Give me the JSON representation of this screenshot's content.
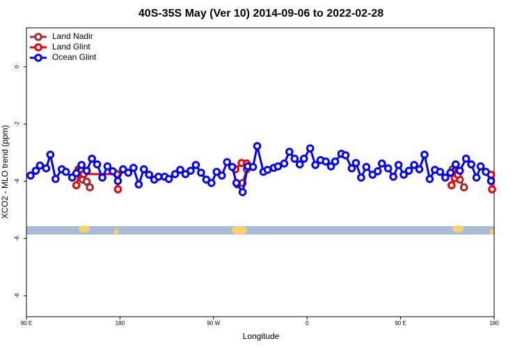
{
  "chart_data": {
    "type": "line",
    "title": "40S-35S May (Ver 10)   2014-09-06 to 2022-02-28",
    "xlabel": "Longitude",
    "ylabel": "XCO2 - MLO trend (ppm)",
    "xlim": [
      90,
      540
    ],
    "ylim": [
      -8.73,
      1.36
    ],
    "xticks": [
      {
        "value": 90,
        "label": "90 E"
      },
      180,
      {
        "value": 270,
        "label": "90 W"
      },
      {
        "value": 360,
        "label": "0"
      },
      {
        "value": 450,
        "label": "90 E"
      },
      {
        "value": 540,
        "label": "180"
      }
    ],
    "yticks": [
      0,
      -2,
      -4,
      -6,
      -8
    ],
    "grid": false,
    "legend": "top-left",
    "series": [
      {
        "name": "Land Nadir",
        "color": "#a52a2a",
        "x": [
          140,
          144,
          148,
          151,
          null,
          293,
          298,
          302,
          null,
          500,
          503,
          507,
          511
        ],
        "values": [
          -3.58,
          -3.94,
          -4.01,
          -4.21,
          null,
          -4.11,
          -4.06,
          -3.58,
          null,
          -3.58,
          -3.8,
          -3.94,
          -4.21
        ]
      },
      {
        "name": "Land Glint",
        "color": "#ee0000",
        "x": [
          138,
          142,
          145,
          177,
          178,
          null,
          291,
          297,
          302,
          null,
          499,
          502,
          505,
          null,
          537,
          538
        ],
        "values": [
          -4.14,
          -3.58,
          -3.75,
          -3.75,
          -4.28,
          null,
          -3.58,
          -3.36,
          -3.38,
          null,
          -4.14,
          -3.89,
          -3.77,
          null,
          -3.77,
          -4.28
        ]
      },
      {
        "name": "Ocean Glint",
        "color": "#0000ee",
        "x": [
          94,
          99,
          103,
          109,
          113,
          118,
          124,
          128,
          134,
          138,
          143,
          148,
          153,
          158,
          163,
          168,
          173,
          178,
          183,
          188,
          193,
          198,
          203,
          208,
          213,
          217,
          223,
          227,
          233,
          238,
          243,
          248,
          253,
          258,
          263,
          268,
          273,
          278,
          283,
          288,
          292,
          298,
          303,
          308,
          312,
          318,
          322,
          328,
          332,
          338,
          343,
          348,
          353,
          357,
          363,
          368,
          373,
          378,
          383,
          387,
          393,
          397,
          403,
          407,
          412,
          417,
          423,
          428,
          432,
          438,
          443,
          448,
          453,
          458,
          463,
          468,
          473,
          478,
          483,
          488,
          493,
          498,
          503,
          507,
          513,
          518,
          523,
          527,
          532,
          537
        ],
        "values": [
          -3.8,
          -3.63,
          -3.45,
          -3.55,
          -3.07,
          -3.92,
          -3.58,
          -3.67,
          -3.87,
          -3.72,
          -3.43,
          -3.63,
          -3.21,
          -3.41,
          -3.87,
          -3.48,
          -3.65,
          -3.99,
          -3.58,
          -3.7,
          -3.53,
          -4.11,
          -3.58,
          -3.77,
          -3.94,
          -3.84,
          -3.84,
          -3.92,
          -3.75,
          -3.6,
          -3.75,
          -3.63,
          -3.43,
          -3.7,
          -3.94,
          -4.06,
          -3.67,
          -3.8,
          -3.33,
          -3.5,
          -4.06,
          -4.38,
          -3.48,
          -3.5,
          -2.77,
          -3.67,
          -3.6,
          -3.53,
          -3.48,
          -3.38,
          -2.97,
          -3.21,
          -3.41,
          -3.21,
          -2.85,
          -3.43,
          -3.26,
          -3.31,
          -3.48,
          -3.31,
          -3.04,
          -3.09,
          -3.55,
          -3.36,
          -3.87,
          -3.5,
          -3.77,
          -3.65,
          -3.38,
          -3.55,
          -3.84,
          -3.43,
          -3.77,
          -3.63,
          -3.43,
          -3.58,
          -3.07,
          -3.92,
          -3.6,
          -3.67,
          -3.87,
          -3.7,
          -3.41,
          -3.63,
          -3.21,
          -3.41,
          -3.87,
          -3.48,
          -3.67,
          -3.99
        ]
      }
    ]
  }
}
